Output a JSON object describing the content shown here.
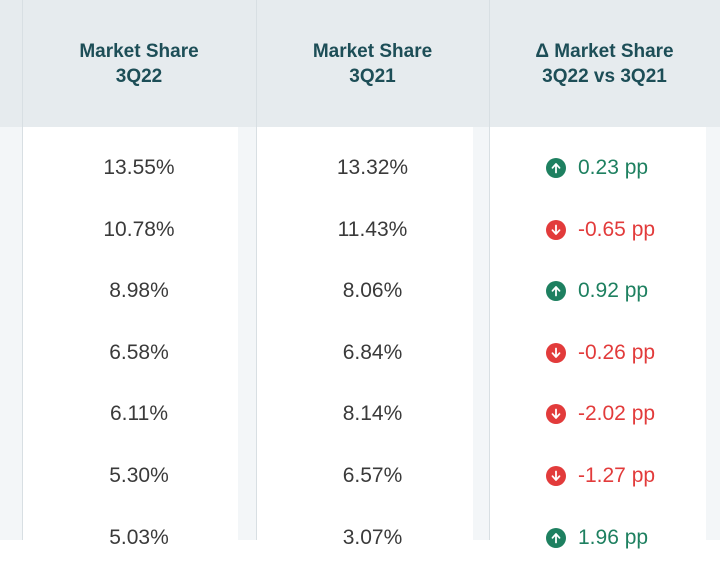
{
  "headers": [
    {
      "line1": "Market Share",
      "line2": "3Q22"
    },
    {
      "line1": "Market Share",
      "line2": "3Q21"
    },
    {
      "line1": "Δ Market Share",
      "line2": "3Q22 vs 3Q21"
    }
  ],
  "rows": [
    {
      "q22": "13.55%",
      "q21": "13.32%",
      "delta": "0.23 pp",
      "direction": "up",
      "icon": "arrow-up-circle-icon"
    },
    {
      "q22": "10.78%",
      "q21": "11.43%",
      "delta": "-0.65 pp",
      "direction": "down",
      "icon": "arrow-down-circle-icon"
    },
    {
      "q22": "8.98%",
      "q21": "8.06%",
      "delta": "0.92 pp",
      "direction": "up",
      "icon": "arrow-up-circle-icon"
    },
    {
      "q22": "6.58%",
      "q21": "6.84%",
      "delta": "-0.26 pp",
      "direction": "down",
      "icon": "arrow-down-circle-icon"
    },
    {
      "q22": "6.11%",
      "q21": "8.14%",
      "delta": "-2.02 pp",
      "direction": "down",
      "icon": "arrow-down-circle-icon"
    },
    {
      "q22": "5.30%",
      "q21": "6.57%",
      "delta": "-1.27 pp",
      "direction": "down",
      "icon": "arrow-down-circle-icon"
    },
    {
      "q22": "5.03%",
      "q21": "3.07%",
      "delta": "1.96 pp",
      "direction": "up",
      "icon": "arrow-up-circle-icon"
    }
  ],
  "colors": {
    "header_text": "#1d4e57",
    "header_bg": "#e6ebee",
    "positive": "#1e8060",
    "negative": "#e23b3b",
    "value_text": "#3a3a3a"
  }
}
